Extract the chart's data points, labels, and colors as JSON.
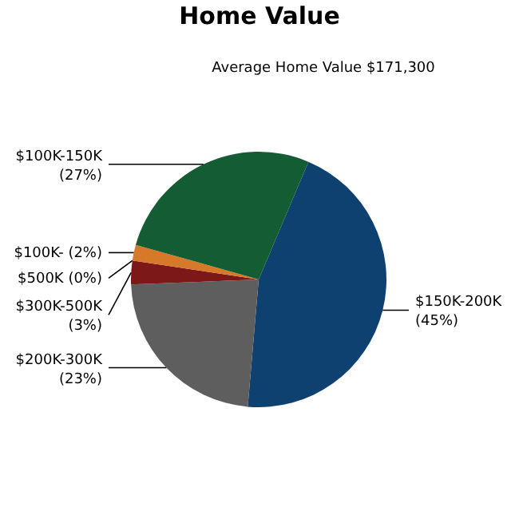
{
  "chart_data": {
    "type": "pie",
    "title": "Home Value",
    "subtitle": "Average Home Value  $171,300",
    "categories": [
      "$150K-200K",
      "$200K-300K",
      "$300K-500K",
      "$500K",
      "$100K-",
      "$100K-150K"
    ],
    "values": [
      45,
      23,
      3,
      0,
      2,
      27
    ],
    "colors": [
      "#0e4170",
      "#5e5e5e",
      "#7c1818",
      "#9a2020",
      "#d67a2a",
      "#145c34"
    ],
    "data_labels": true,
    "value_labels": [
      "(45%)",
      "(23%)",
      "(3%)",
      "(0%)",
      "(2%)",
      "(27%)"
    ]
  }
}
